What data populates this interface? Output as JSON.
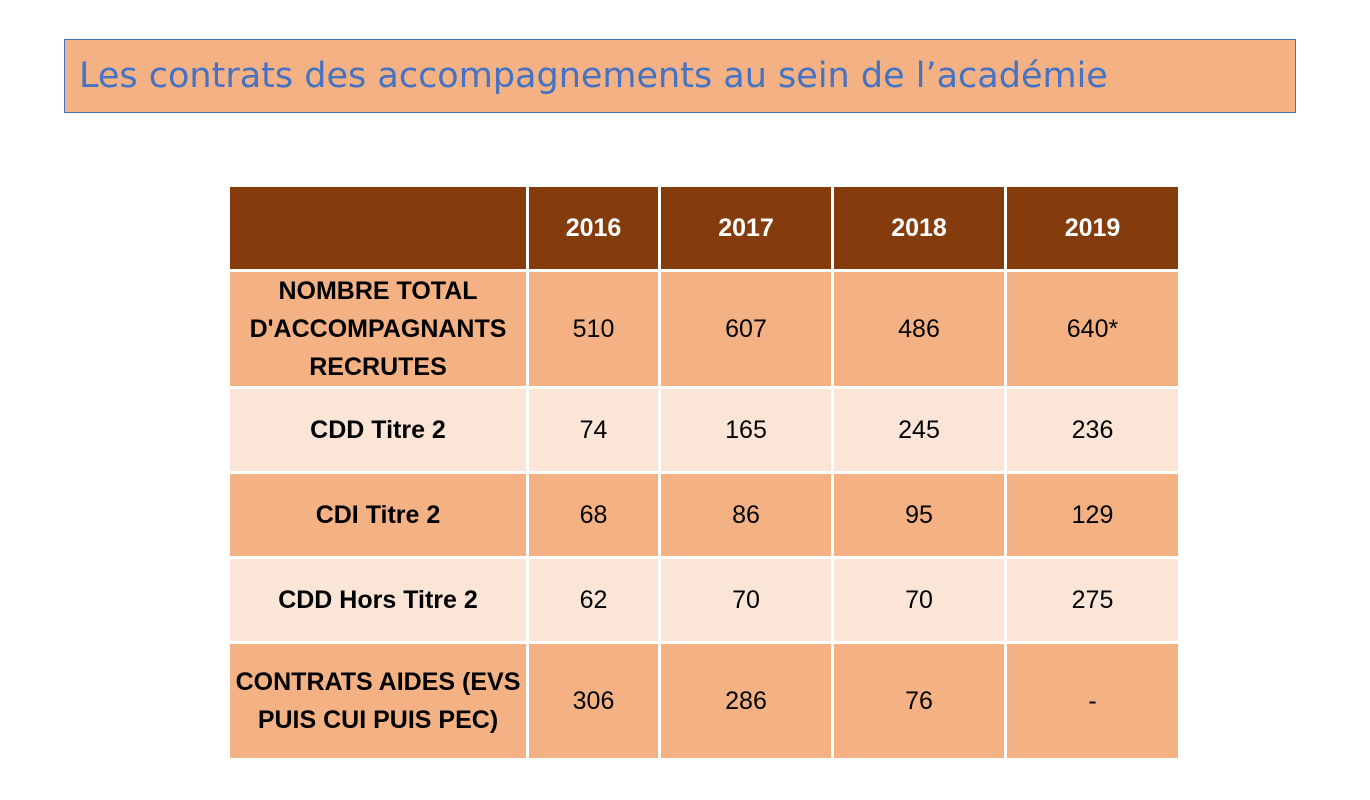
{
  "title": "Les contrats des accompagnements au sein de l’académie",
  "colors": {
    "title_background": "#f4b183",
    "title_text": "#4472c4",
    "header_background": "#843c0c",
    "row_dark": "#f4b183",
    "row_light": "#fbe5d6"
  },
  "table": {
    "corner_header": "",
    "years": [
      "2016",
      "2017",
      "2018",
      "2019"
    ],
    "rows": [
      {
        "label": "NOMBRE TOTAL D'ACCOMPAGNANTS RECRUTES",
        "values": [
          "510",
          "607",
          "486",
          "640*"
        ]
      },
      {
        "label": "CDD Titre 2",
        "values": [
          "74",
          "165",
          "245",
          "236"
        ]
      },
      {
        "label": "CDI Titre 2",
        "values": [
          "68",
          "86",
          "95",
          "129"
        ]
      },
      {
        "label": "CDD Hors Titre 2",
        "values": [
          "62",
          "70",
          "70",
          "275"
        ]
      },
      {
        "label": "CONTRATS AIDES (EVS PUIS CUI PUIS PEC)",
        "values": [
          "306",
          "286",
          "76",
          "-"
        ]
      }
    ]
  }
}
